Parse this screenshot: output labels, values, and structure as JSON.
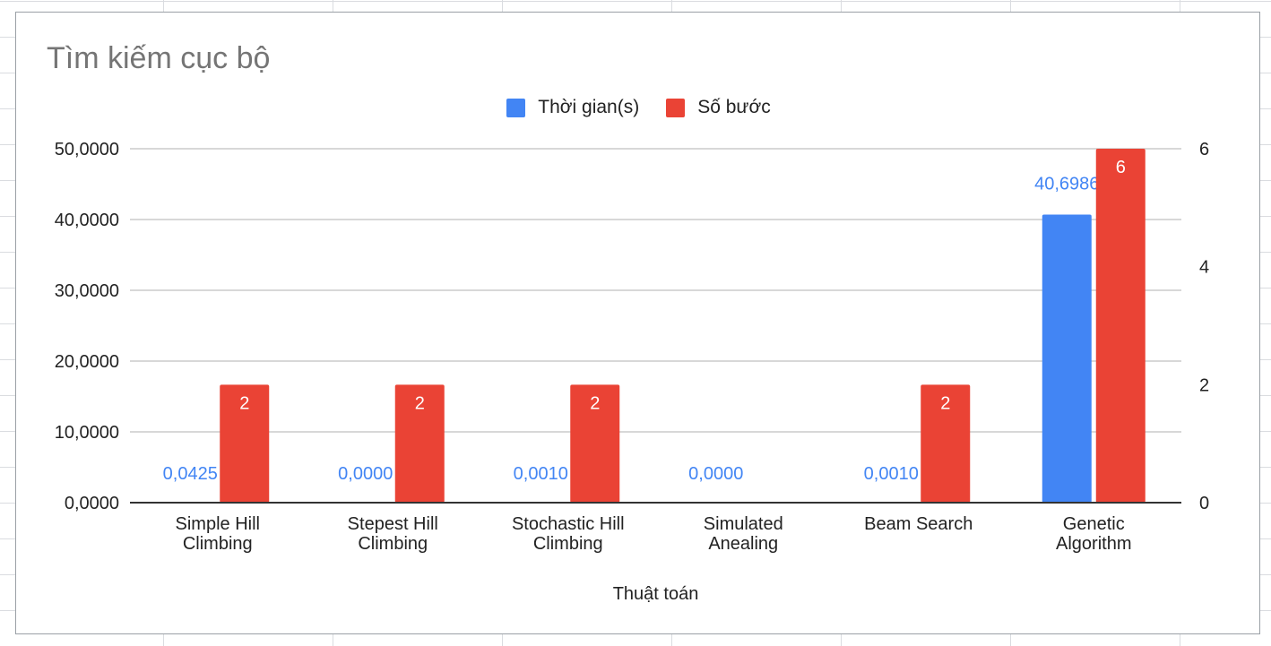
{
  "chart_data": {
    "type": "bar",
    "title": "Tìm kiếm cục bộ",
    "xlabel": "Thuật toán",
    "ylabel": "",
    "y2label": "",
    "categories": [
      [
        "Simple Hill",
        "Climbing"
      ],
      [
        "Stepest Hill",
        "Climbing"
      ],
      [
        "Stochastic Hill",
        "Climbing"
      ],
      [
        "Simulated",
        "Anealing"
      ],
      [
        "Beam Search"
      ],
      [
        "Genetic",
        "Algorithm"
      ]
    ],
    "series": [
      {
        "name": "Thời gian(s)",
        "axis": "left",
        "color": "#4285f4",
        "values": [
          0.0425,
          0.0,
          0.001,
          0.0,
          0.001,
          40.6986
        ],
        "labels": [
          "0,0425",
          "0,0000",
          "0,0010",
          "0,0000",
          "0,0010",
          "40,6986"
        ]
      },
      {
        "name": "Số bước",
        "axis": "right",
        "color": "#ea4335",
        "values": [
          2,
          2,
          2,
          null,
          2,
          6
        ],
        "labels": [
          "2",
          "2",
          "2",
          "",
          "2",
          "6"
        ]
      }
    ],
    "ylim": [
      0,
      50
    ],
    "y2lim": [
      0,
      6
    ],
    "yticks": [
      "0,0000",
      "10,0000",
      "20,0000",
      "30,0000",
      "40,0000",
      "50,0000"
    ],
    "y2ticks": [
      "0",
      "2",
      "4",
      "6"
    ],
    "grid": true,
    "legend_position": "top"
  }
}
